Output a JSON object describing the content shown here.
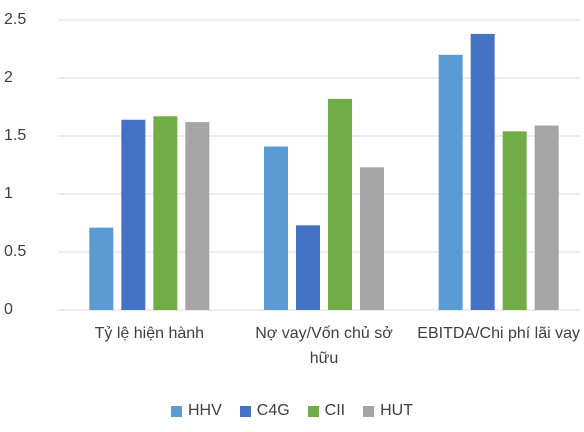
{
  "chart_data": {
    "type": "bar",
    "categories": [
      "Tỷ lệ hiện hành",
      "Nợ vay/Vốn chủ sở hữu",
      "EBITDA/Chi phí lãi vay"
    ],
    "series": [
      {
        "name": "HHV",
        "color": "#5b9bd5",
        "values": [
          0.71,
          1.41,
          2.2
        ]
      },
      {
        "name": "C4G",
        "color": "#4472c4",
        "values": [
          1.64,
          0.73,
          2.38
        ]
      },
      {
        "name": "CII",
        "color": "#70ad47",
        "values": [
          1.67,
          1.82,
          1.54
        ]
      },
      {
        "name": "HUT",
        "color": "#a5a5a5",
        "values": [
          1.62,
          1.23,
          1.59
        ]
      }
    ],
    "ylim": [
      0,
      2.5
    ],
    "yticks": [
      0,
      0.5,
      1,
      1.5,
      2,
      2.5
    ],
    "grid": true,
    "legend": "bottom"
  }
}
